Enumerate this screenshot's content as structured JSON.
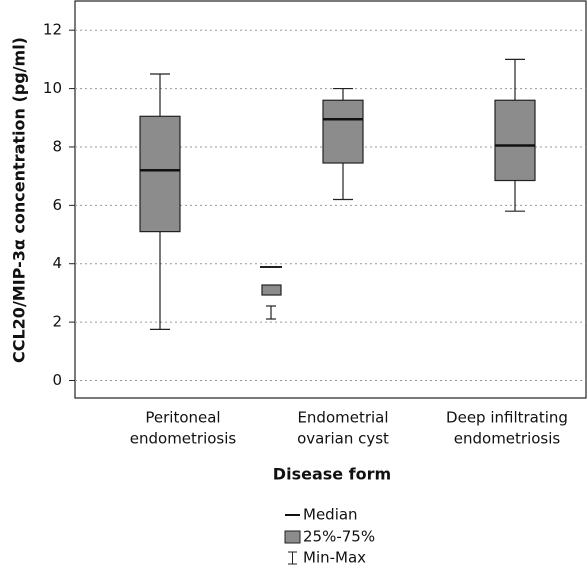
{
  "chart_data": {
    "type": "box",
    "y_label": "CCL20/MIP-3α concentration (pg/ml)",
    "x_label": "Disease form",
    "categories": [
      [
        "Peritoneal",
        "endometriosis"
      ],
      [
        "Endometrial",
        "ovarian cyst"
      ],
      [
        "Deep infiltrating",
        "endometriosis"
      ]
    ],
    "min": [
      1.75,
      6.2,
      5.8
    ],
    "q1": [
      5.1,
      7.45,
      6.85
    ],
    "median": [
      7.2,
      8.95,
      8.05
    ],
    "q3": [
      9.05,
      9.6,
      9.6
    ],
    "max": [
      10.5,
      10.0,
      11.0
    ],
    "color": "#8c8c8c",
    "ylim": [
      -0.6,
      13
    ],
    "yticks": [
      0,
      2,
      4,
      6,
      8,
      10,
      12
    ],
    "grid": true,
    "legend": [
      "Median",
      "25%-75%",
      "Min-Max"
    ]
  }
}
